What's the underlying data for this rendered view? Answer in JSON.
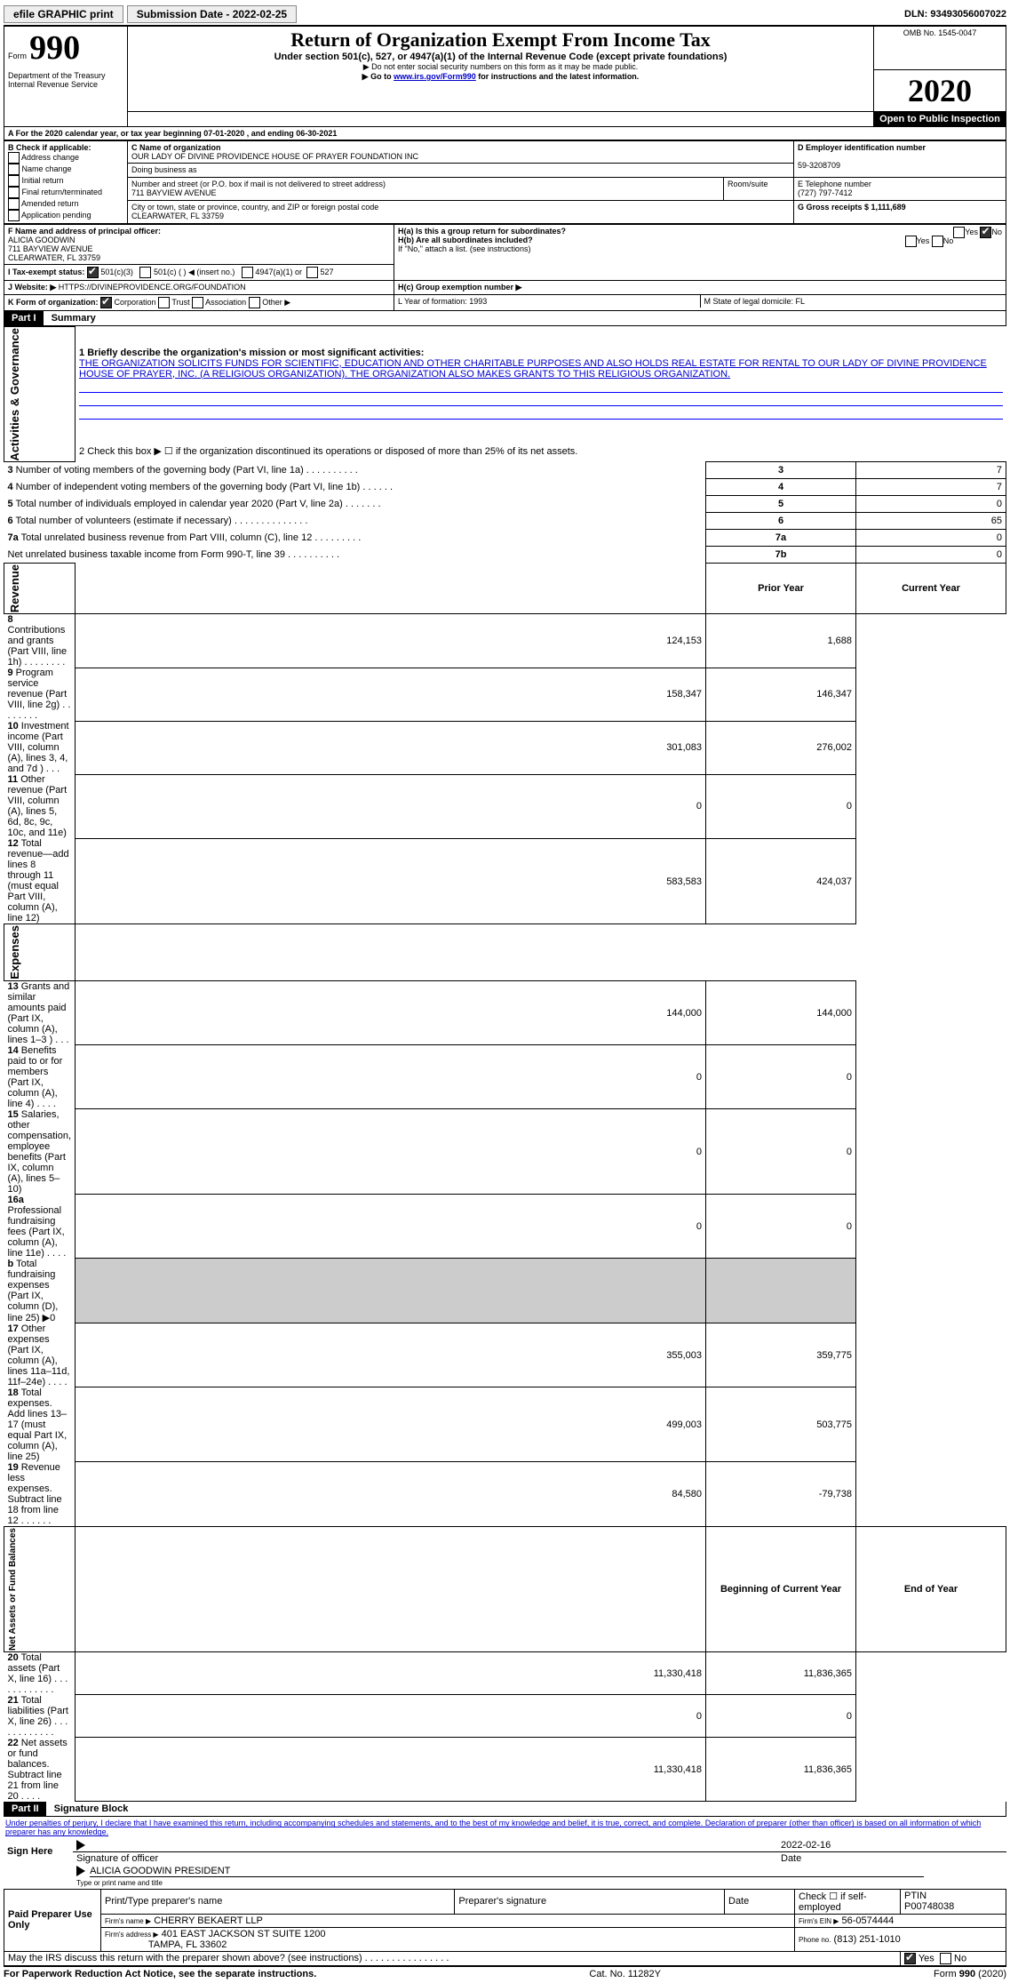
{
  "topbar": {
    "efile": "efile GRAPHIC print",
    "submission_label": "Submission Date - 2022-02-25",
    "dln_label": "DLN: 93493056007022"
  },
  "header": {
    "form_word": "Form",
    "form_number": "990",
    "dept1": "Department of the Treasury",
    "dept2": "Internal Revenue Service",
    "title": "Return of Organization Exempt From Income Tax",
    "subtitle": "Under section 501(c), 527, or 4947(a)(1) of the Internal Revenue Code (except private foundations)",
    "note1": "▶ Do not enter social security numbers on this form as it may be made public.",
    "note2_pre": "▶ Go to ",
    "note2_link": "www.irs.gov/Form990",
    "note2_post": " for instructions and the latest information.",
    "omb": "OMB No. 1545-0047",
    "year": "2020",
    "open": "Open to Public Inspection"
  },
  "periodA": "For the 2020 calendar year, or tax year beginning 07-01-2020    , and ending 06-30-2021",
  "boxB": {
    "hdr": "B Check if applicable:",
    "opts": [
      "Address change",
      "Name change",
      "Initial return",
      "Final return/terminated",
      "Amended return",
      "Application pending"
    ]
  },
  "boxC": {
    "hdr": "C Name of organization",
    "name": "OUR LADY OF DIVINE PROVIDENCE HOUSE OF PRAYER FOUNDATION INC",
    "dba_lbl": "Doing business as",
    "addr_hdr": "Number and street (or P.O. box if mail is not delivered to street address)",
    "room_hdr": "Room/suite",
    "addr": "711 BAYVIEW AVENUE",
    "city_hdr": "City or town, state or province, country, and ZIP or foreign postal code",
    "city": "CLEARWATER, FL  33759"
  },
  "boxD": {
    "hdr": "D Employer identification number",
    "val": "59-3208709"
  },
  "boxE": {
    "hdr": "E Telephone number",
    "val": "(727) 797-7412"
  },
  "boxG": {
    "hdr": "G Gross receipts $ 1,111,689"
  },
  "boxF": {
    "hdr": "F  Name and address of principal officer:",
    "l1": "ALICIA GOODWIN",
    "l2": "711 BAYVIEW AVENUE",
    "l3": "CLEARWATER, FL  33759"
  },
  "boxH": {
    "a": "H(a)  Is this a group return for subordinates?",
    "b": "H(b)  Are all subordinates included?",
    "bnote": "If \"No,\" attach a list. (see instructions)",
    "c": "H(c)  Group exemption number ▶",
    "yes": "Yes",
    "no": "No"
  },
  "boxI": {
    "lbl": "I   Tax-exempt status:",
    "o1": "501(c)(3)",
    "o2": "501(c) (   ) ◀ (insert no.)",
    "o3": "4947(a)(1) or",
    "o4": "527"
  },
  "boxJ": {
    "lbl": "J   Website: ▶",
    "val": "HTTPS://DIVINEPROVIDENCE.ORG/FOUNDATION"
  },
  "boxK": {
    "lbl": "K Form of organization:",
    "o1": "Corporation",
    "o2": "Trust",
    "o3": "Association",
    "o4": "Other ▶"
  },
  "boxL": "L Year of formation: 1993",
  "boxM": "M State of legal domicile: FL",
  "part1": {
    "hdr": "Part I",
    "title": "Summary",
    "vlabel1": "Activities & Governance",
    "l1_lbl": "1   Briefly describe the organization's mission or most significant activities:",
    "l1_txt": "THE ORGANIZATION SOLICITS FUNDS FOR SCIENTIFIC, EDUCATION AND OTHER CHARITABLE PURPOSES AND ALSO HOLDS REAL ESTATE FOR RENTAL TO OUR LADY OF DIVINE PROVIDENCE HOUSE OF PRAYER, INC. (A RELIGIOUS ORGANIZATION). THE ORGANIZATION ALSO MAKES GRANTS TO THIS RELIGIOUS ORGANIZATION.",
    "l2": "2   Check this box ▶ ☐ if the organization discontinued its operations or disposed of more than 25% of its net assets.",
    "rows_top": [
      {
        "n": "3",
        "t": "Number of voting members of the governing body (Part VI, line 1a)    .    .    .    .    .    .    .    .    .    .",
        "box": "3",
        "v": "7"
      },
      {
        "n": "4",
        "t": "Number of independent voting members of the governing body (Part VI, line 1b)    .    .    .    .    .    .",
        "box": "4",
        "v": "7"
      },
      {
        "n": "5",
        "t": "Total number of individuals employed in calendar year 2020 (Part V, line 2a)    .    .    .    .    .    .    .",
        "box": "5",
        "v": "0"
      },
      {
        "n": "6",
        "t": "Total number of volunteers (estimate if necessary)    .    .    .    .    .    .    .    .    .    .    .    .    .    .",
        "box": "6",
        "v": "65"
      },
      {
        "n": "7a",
        "t": "Total unrelated business revenue from Part VIII, column (C), line 12    .    .    .    .    .    .    .    .    .",
        "box": "7a",
        "v": "0"
      },
      {
        "n": "",
        "t": "Net unrelated business taxable income from Form 990-T, line 39    .    .    .    .    .    .    .    .    .    .",
        "box": "7b",
        "v": "0"
      }
    ],
    "col_prior": "Prior Year",
    "col_current": "Current Year",
    "vlabel2": "Revenue",
    "rev_rows": [
      {
        "n": "8",
        "t": "Contributions and grants (Part VIII, line 1h)    .    .    .    .    .    .    .    .",
        "p": "124,153",
        "c": "1,688"
      },
      {
        "n": "9",
        "t": "Program service revenue (Part VIII, line 2g)    .    .    .    .    .    .    .    .",
        "p": "158,347",
        "c": "146,347"
      },
      {
        "n": "10",
        "t": "Investment income (Part VIII, column (A), lines 3, 4, and 7d )    .    .    .",
        "p": "301,083",
        "c": "276,002"
      },
      {
        "n": "11",
        "t": "Other revenue (Part VIII, column (A), lines 5, 6d, 8c, 9c, 10c, and 11e)",
        "p": "0",
        "c": "0"
      },
      {
        "n": "12",
        "t": "Total revenue—add lines 8 through 11 (must equal Part VIII, column (A), line 12)",
        "p": "583,583",
        "c": "424,037"
      }
    ],
    "vlabel3": "Expenses",
    "exp_rows": [
      {
        "n": "13",
        "t": "Grants and similar amounts paid (Part IX, column (A), lines 1–3 )    .    .    .",
        "p": "144,000",
        "c": "144,000"
      },
      {
        "n": "14",
        "t": "Benefits paid to or for members (Part IX, column (A), line 4)    .    .    .    .",
        "p": "0",
        "c": "0"
      },
      {
        "n": "15",
        "t": "Salaries, other compensation, employee benefits (Part IX, column (A), lines 5–10)",
        "p": "0",
        "c": "0"
      },
      {
        "n": "16a",
        "t": "Professional fundraising fees (Part IX, column (A), line 11e)    .    .    .    .",
        "p": "0",
        "c": "0"
      },
      {
        "n": "b",
        "t": "Total fundraising expenses (Part IX, column (D), line 25) ▶0",
        "p": "",
        "c": ""
      },
      {
        "n": "17",
        "t": "Other expenses (Part IX, column (A), lines 11a–11d, 11f–24e)    .    .    .    .",
        "p": "355,003",
        "c": "359,775"
      },
      {
        "n": "18",
        "t": "Total expenses. Add lines 13–17 (must equal Part IX, column (A), line 25)",
        "p": "499,003",
        "c": "503,775"
      },
      {
        "n": "19",
        "t": "Revenue less expenses. Subtract line 18 from line 12    .    .    .    .    .    .",
        "p": "84,580",
        "c": "-79,738"
      }
    ],
    "col_begin": "Beginning of Current Year",
    "col_end": "End of Year",
    "vlabel4": "Net Assets or Fund Balances",
    "net_rows": [
      {
        "n": "20",
        "t": "Total assets (Part X, line 16)    .    .    .    .    .    .    .    .    .    .    .    .",
        "p": "11,330,418",
        "c": "11,836,365"
      },
      {
        "n": "21",
        "t": "Total liabilities (Part X, line 26)    .    .    .    .    .    .    .    .    .    .    .    .",
        "p": "0",
        "c": "0"
      },
      {
        "n": "22",
        "t": "Net assets or fund balances. Subtract line 21 from line 20    .    .    .    .",
        "p": "11,330,418",
        "c": "11,836,365"
      }
    ]
  },
  "part2": {
    "hdr": "Part II",
    "title": "Signature Block",
    "decl": "Under penalties of perjury, I declare that I have examined this return, including accompanying schedules and statements, and to the best of my knowledge and belief, it is true, correct, and complete. Declaration of preparer (other than officer) is based on all information of which preparer has any knowledge.",
    "sign_here": "Sign Here",
    "sig_lbl": "Signature of officer",
    "date_val": "2022-02-16",
    "date_lbl": "Date",
    "name_val": "ALICIA GOODWIN  PRESIDENT",
    "name_lbl": "Type or print name and title",
    "paid": "Paid Preparer Use Only",
    "p_name_hdr": "Print/Type preparer's name",
    "p_sig_hdr": "Preparer's signature",
    "p_date_hdr": "Date",
    "p_self": "Check ☐ if self-employed",
    "ptin_hdr": "PTIN",
    "ptin_val": "P00748038",
    "firm_lbl": "Firm's name      ▶",
    "firm_val": "CHERRY BEKAERT LLP",
    "ein_lbl": "Firm's EIN ▶",
    "ein_val": "56-0574444",
    "addr_lbl": "Firm's address ▶",
    "addr_val1": "401 EAST JACKSON ST SUITE 1200",
    "addr_val2": "TAMPA, FL  33602",
    "phone_lbl": "Phone no.",
    "phone_val": "(813) 251-1010",
    "discuss": "May the IRS discuss this return with the preparer shown above? (see instructions)    .    .    .    .    .    .    .    .    .    .    .    .    .    .    .    .",
    "yes": "Yes",
    "no": "No"
  },
  "footer": {
    "left": "For Paperwork Reduction Act Notice, see the separate instructions.",
    "mid": "Cat. No. 11282Y",
    "right_pre": "Form ",
    "right_bold": "990",
    "right_post": " (2020)"
  }
}
